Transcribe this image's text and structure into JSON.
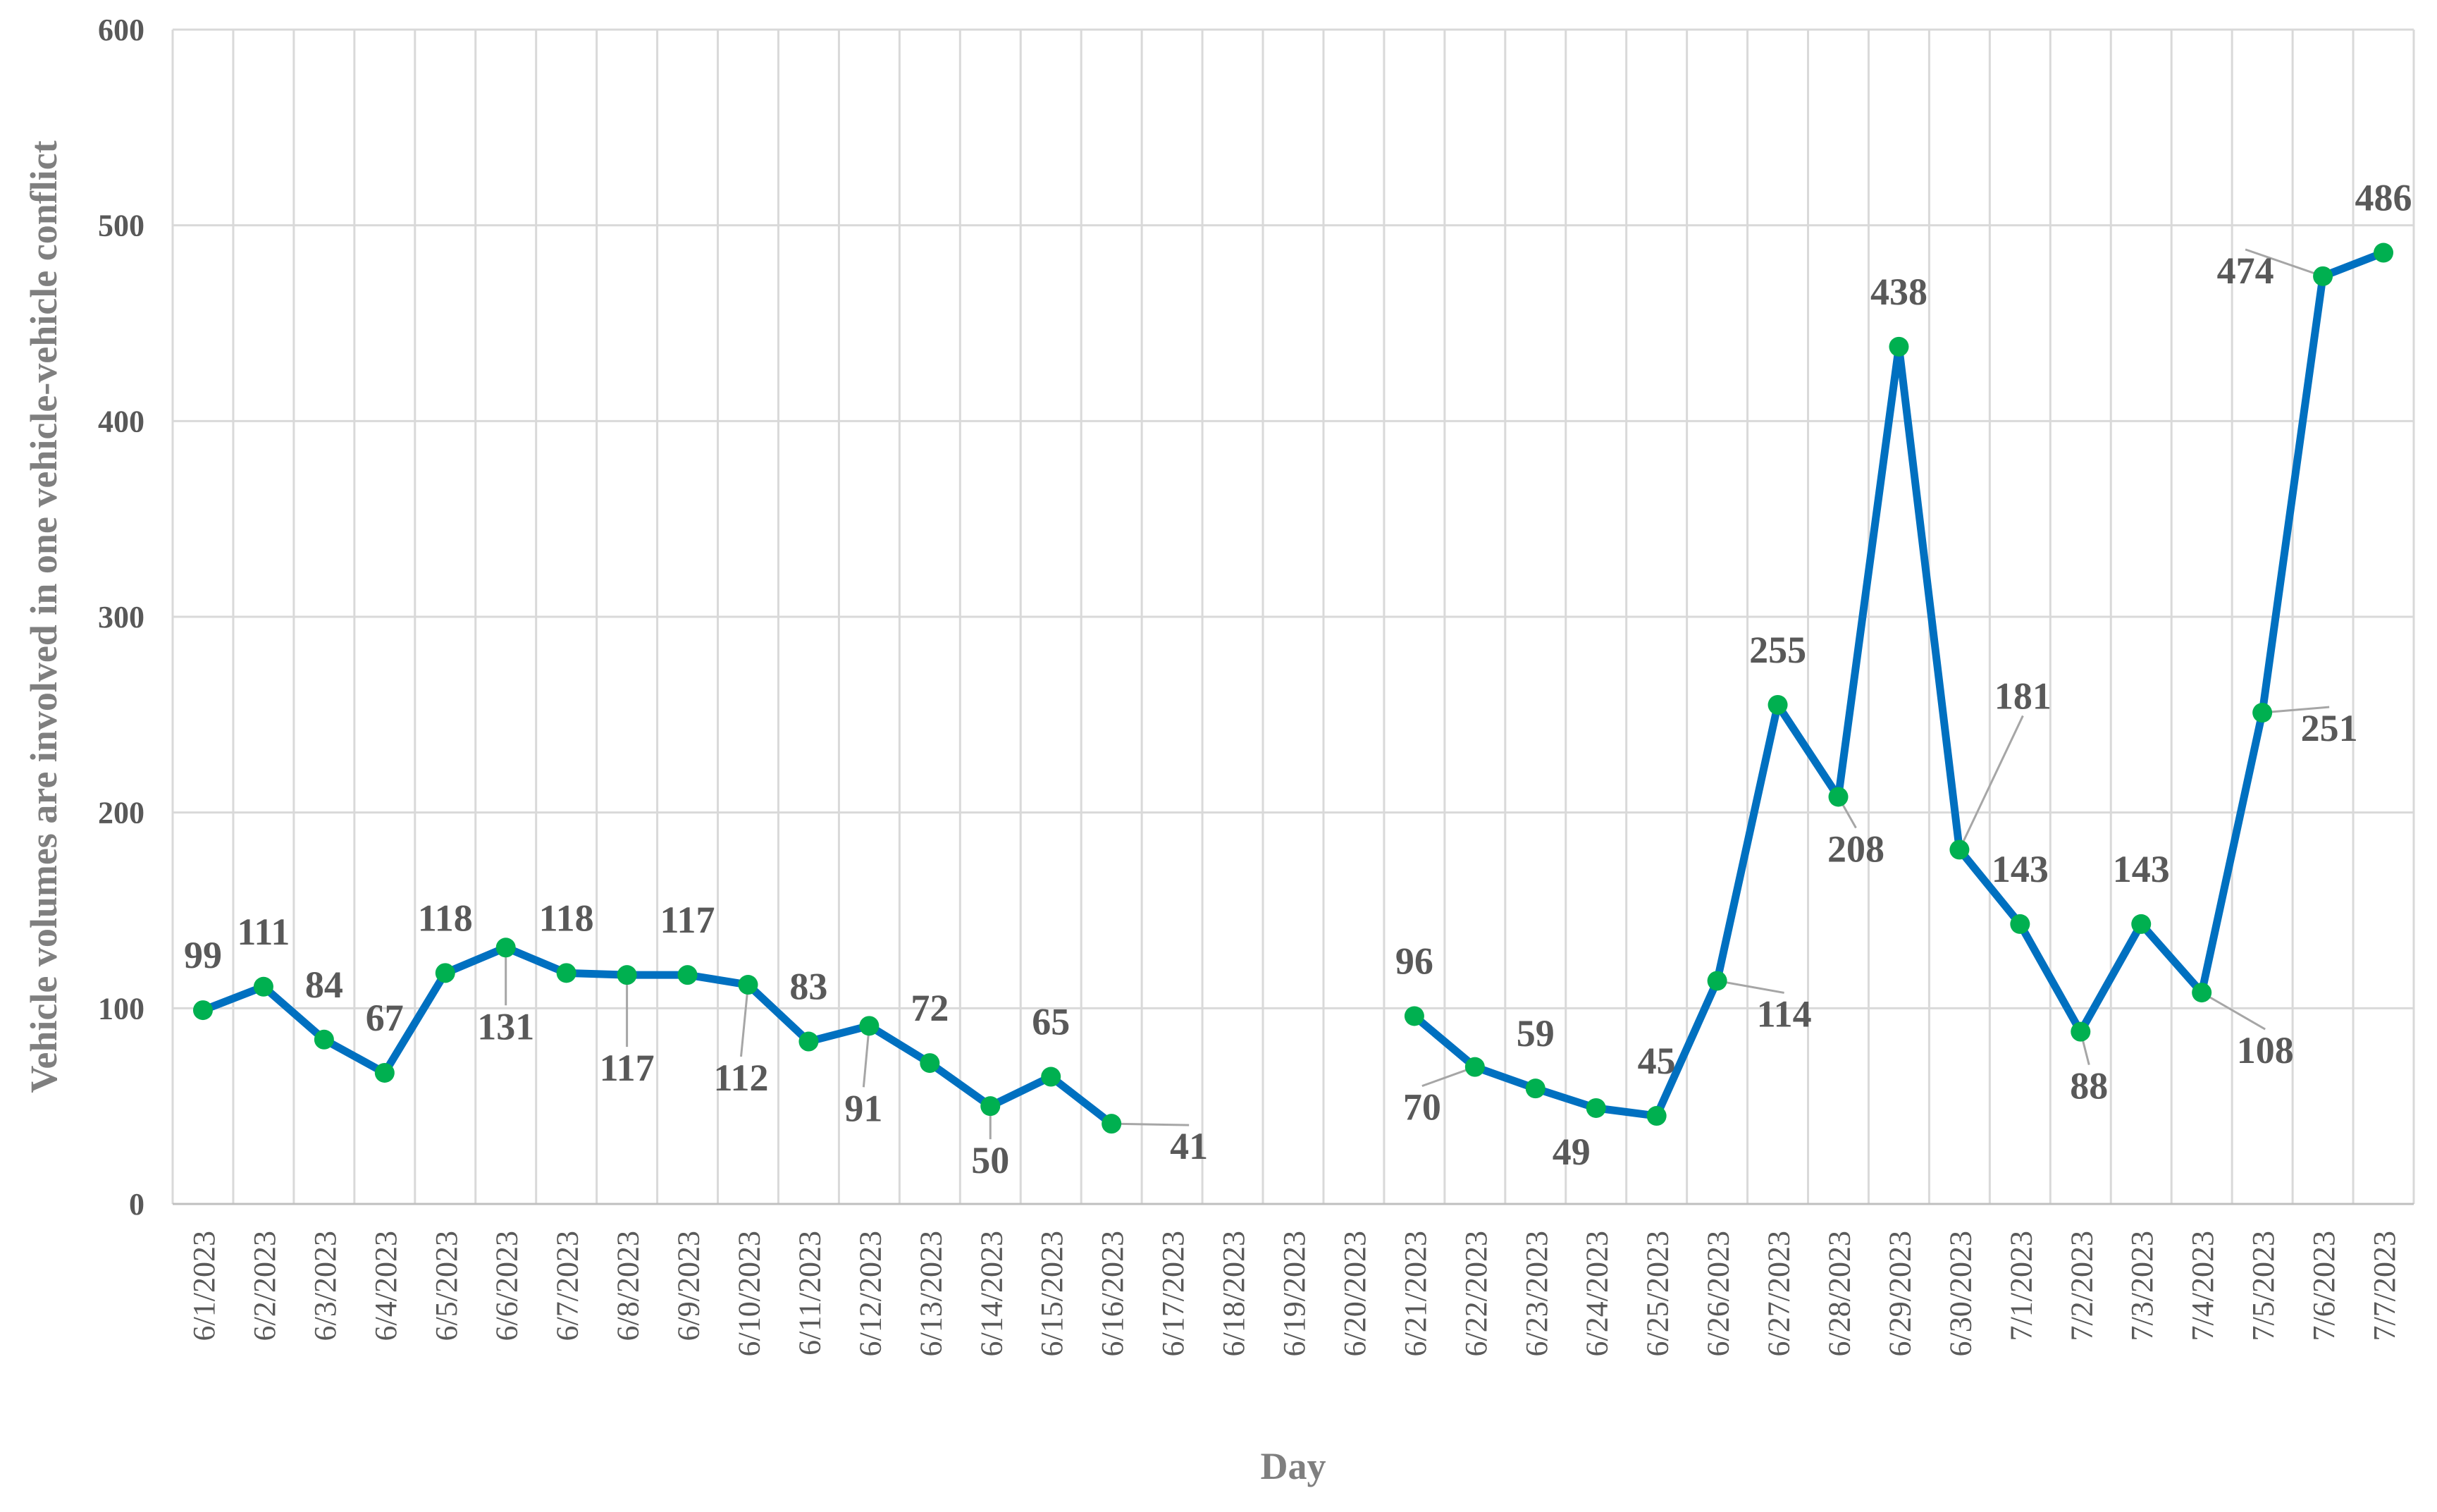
{
  "chart_data": {
    "type": "line",
    "xlabel": "Day",
    "ylabel": "Vehicle volumes are involved in one vehicle-vehicle conflict",
    "ylim": [
      0,
      600
    ],
    "yticks": [
      "0",
      "100",
      "200",
      "300",
      "400",
      "500",
      "600"
    ],
    "grid": true,
    "legend": "none",
    "categories": [
      "6/1/2023",
      "6/2/2023",
      "6/3/2023",
      "6/4/2023",
      "6/5/2023",
      "6/6/2023",
      "6/7/2023",
      "6/8/2023",
      "6/9/2023",
      "6/10/2023",
      "6/11/2023",
      "6/12/2023",
      "6/13/2023",
      "6/14/2023",
      "6/15/2023",
      "6/16/2023",
      "6/17/2023",
      "6/18/2023",
      "6/19/2023",
      "6/20/2023",
      "6/21/2023",
      "6/22/2023",
      "6/23/2023",
      "6/24/2023",
      "6/25/2023",
      "6/26/2023",
      "6/27/2023",
      "6/28/2023",
      "6/29/2023",
      "6/30/2023",
      "7/1/2023",
      "7/2/2023",
      "7/3/2023",
      "7/4/2023",
      "7/5/2023",
      "7/6/2023",
      "7/7/2023"
    ],
    "series": [
      {
        "values": [
          99,
          111,
          84,
          67,
          118,
          131,
          118,
          117,
          117,
          112,
          83,
          91,
          72,
          50,
          65,
          41,
          null,
          null,
          null,
          null,
          96,
          70,
          59,
          49,
          45,
          114,
          255,
          208,
          438,
          181,
          143,
          88,
          143,
          108,
          251,
          474,
          486
        ],
        "color": "#0070C0",
        "marker_color": "#00B050"
      }
    ]
  }
}
